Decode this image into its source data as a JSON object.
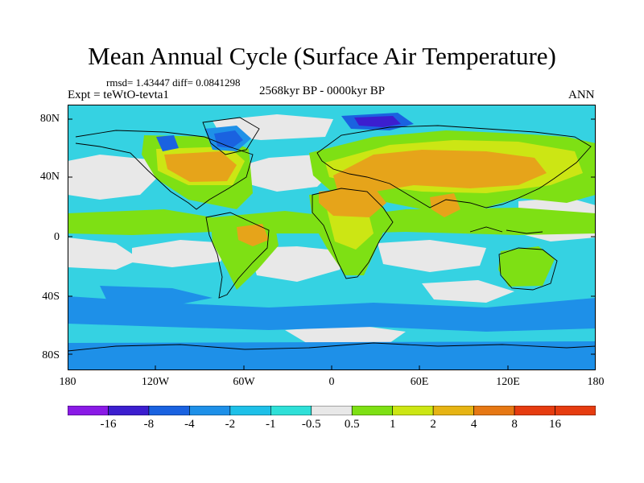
{
  "title": "Mean Annual Cycle (Surface Air Temperature)",
  "stats": "rmsd= 1.43447 diff= 0.0841298",
  "experiment": "Expt = teWtO-tevta1",
  "period": "2568kyr BP - 0000kyr BP",
  "season": "ANN",
  "lat_labels": [
    "80N",
    "40N",
    "0",
    "40S",
    "80S"
  ],
  "lon_labels": [
    "180",
    "120W",
    "60W",
    "0",
    "60E",
    "120E",
    "180"
  ],
  "colorbar": {
    "labels": [
      "-16",
      "-8",
      "-4",
      "-2",
      "-1",
      "-0.5",
      "0.5",
      "1",
      "2",
      "4",
      "8",
      "16"
    ],
    "colors": [
      "#8a1ae6",
      "#3c1ecf",
      "#1a62e0",
      "#1e90e8",
      "#1ec0e8",
      "#2fe0d8",
      "#e8e8e8",
      "#7ee014",
      "#cce614",
      "#e6b414",
      "#e67814",
      "#e63c10"
    ]
  },
  "legend_colors": {
    "ocean_base": "#35d2e2",
    "neutral": "#e8e8e8",
    "slight_warm": "#7ee014",
    "warm": "#cce614",
    "strong_warm": "#e6a41a",
    "hot": "#e67814",
    "cool": "#1e90e8",
    "cold": "#1a62e0",
    "very_cold": "#3c1ecf"
  }
}
